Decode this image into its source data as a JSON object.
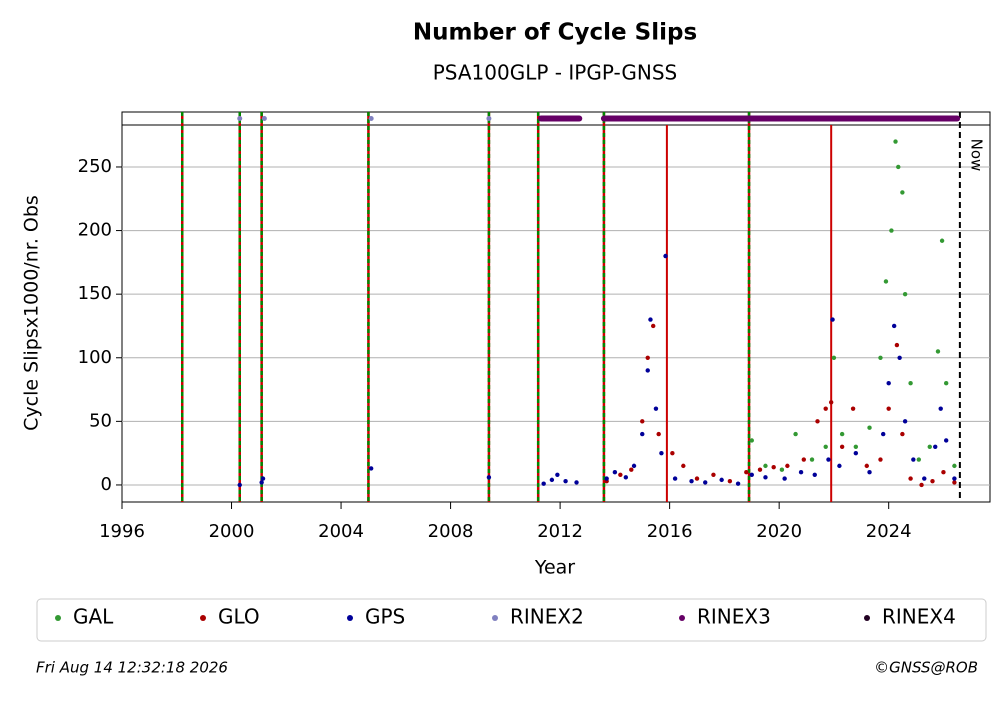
{
  "chart_data": {
    "type": "scatter",
    "title": "Number of Cycle Slips",
    "subtitle": "PSA100GLP - IPGP-GNSS",
    "x_label": "Year",
    "y_label": "Cycle Slipsx1000/nr. Obs",
    "xlim": [
      1996,
      2027.7
    ],
    "ylim": [
      -13.4,
      283
    ],
    "xticks": [
      1996,
      2000,
      2004,
      2008,
      2012,
      2016,
      2020,
      2024
    ],
    "yticks": [
      0,
      50,
      100,
      150,
      200,
      250
    ],
    "grid": true,
    "series": [
      {
        "name": "GAL",
        "color": "#339933",
        "x": [
          2019.0,
          2019.5,
          2020.1,
          2020.6,
          2021.2,
          2021.7,
          2022.0,
          2022.3,
          2022.8,
          2023.3,
          2023.7,
          2023.9,
          2024.1,
          2024.25,
          2024.35,
          2024.5,
          2024.6,
          2024.8,
          2025.1,
          2025.5,
          2025.8,
          2025.95,
          2026.1,
          2026.4
        ],
        "values": [
          35,
          15,
          12,
          40,
          20,
          30,
          100,
          40,
          30,
          45,
          100,
          160,
          200,
          270,
          250,
          230,
          150,
          80,
          20,
          30,
          105,
          192,
          80,
          15
        ]
      },
      {
        "name": "GLO",
        "color": "#aa0000",
        "x": [
          2013.7,
          2014.2,
          2014.6,
          2015.0,
          2015.2,
          2015.4,
          2015.6,
          2016.1,
          2016.5,
          2017.0,
          2017.6,
          2018.2,
          2018.8,
          2019.3,
          2019.8,
          2020.3,
          2020.9,
          2021.4,
          2021.7,
          2021.9,
          2022.3,
          2022.7,
          2023.2,
          2023.7,
          2024.0,
          2024.3,
          2024.5,
          2024.8,
          2025.2,
          2025.6,
          2026.0,
          2026.4
        ],
        "values": [
          3,
          8,
          12,
          50,
          100,
          125,
          40,
          25,
          15,
          5,
          8,
          3,
          10,
          12,
          14,
          15,
          20,
          50,
          60,
          65,
          30,
          60,
          15,
          20,
          60,
          110,
          40,
          5,
          0,
          3,
          10,
          2
        ]
      },
      {
        "name": "GPS",
        "color": "#000099",
        "x": [
          2000.3,
          2001.1,
          2001.15,
          2005.1,
          2009.4,
          2011.4,
          2011.7,
          2011.9,
          2012.2,
          2012.6,
          2013.7,
          2014.0,
          2014.4,
          2014.7,
          2015.0,
          2015.2,
          2015.3,
          2015.5,
          2015.7,
          2015.85,
          2016.2,
          2016.8,
          2017.3,
          2017.9,
          2018.5,
          2019.0,
          2019.5,
          2020.2,
          2020.8,
          2021.3,
          2021.8,
          2021.95,
          2022.2,
          2022.8,
          2023.3,
          2023.8,
          2024.0,
          2024.2,
          2024.4,
          2024.6,
          2024.9,
          2025.3,
          2025.7,
          2025.9,
          2026.1,
          2026.4
        ],
        "values": [
          0,
          2,
          5,
          13,
          6,
          1,
          4,
          8,
          3,
          2,
          5,
          10,
          6,
          15,
          40,
          90,
          130,
          60,
          25,
          180,
          5,
          3,
          2,
          4,
          1,
          8,
          6,
          5,
          10,
          8,
          20,
          130,
          15,
          25,
          10,
          40,
          80,
          125,
          100,
          50,
          20,
          5,
          30,
          60,
          35,
          5
        ]
      }
    ],
    "strip_series": [
      {
        "name": "RINEX2",
        "color": "#8080c0",
        "x": [
          2000.3,
          2001.2,
          2005.1,
          2009.4
        ]
      },
      {
        "name": "RINEX3",
        "color": "#660066",
        "ranges": [
          [
            2011.3,
            2012.7
          ],
          [
            2013.6,
            2026.5
          ]
        ]
      },
      {
        "name": "RINEX4",
        "color": "#220022"
      }
    ],
    "gap_lines": [
      1998.2,
      2000.3,
      2001.1,
      2005.0,
      2009.4,
      2011.2,
      2013.6,
      2018.9
    ],
    "red_lines": [
      2015.9,
      2021.9
    ],
    "now_x": 2026.6,
    "now_label": "Now",
    "date": "Fri Aug 14 12:32:18 2026",
    "credit": "©GNSS@ROB"
  }
}
